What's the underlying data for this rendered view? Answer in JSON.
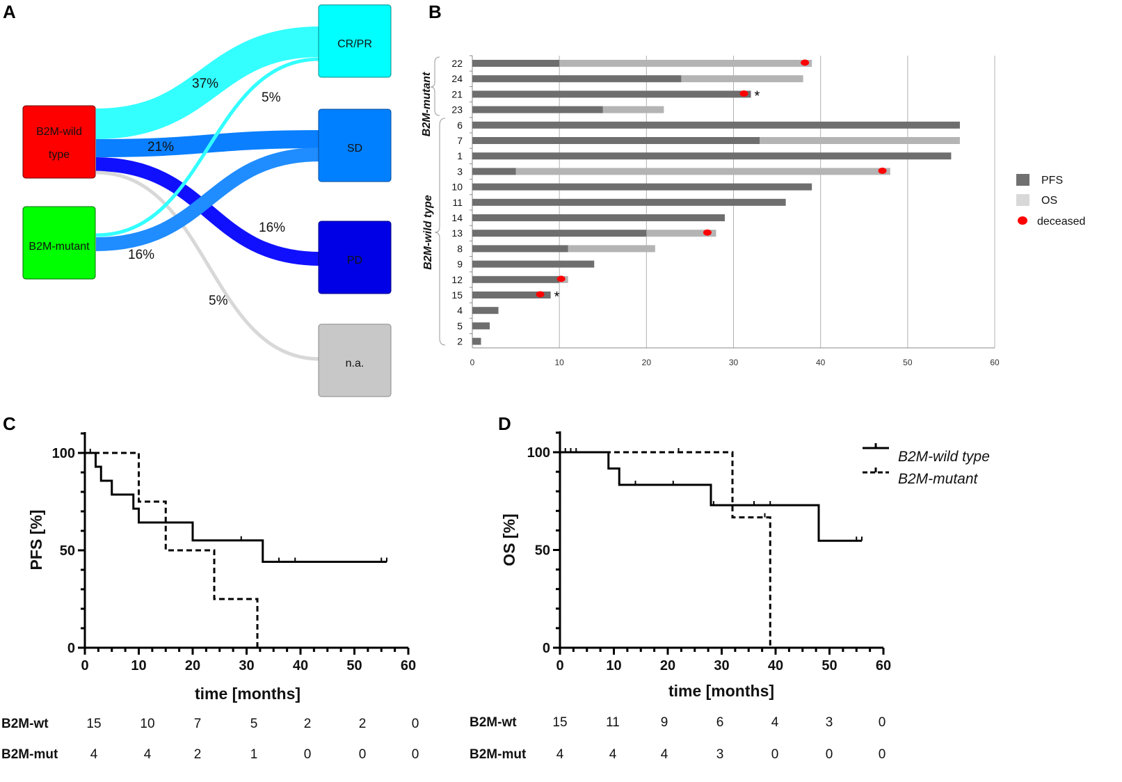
{
  "panel_labels": {
    "a": "A",
    "b": "B",
    "c": "C",
    "d": "D"
  },
  "sankey": {
    "sources": [
      {
        "id": "wt",
        "line1": "B2M-wild",
        "line2": "type",
        "color": "#ff0000"
      },
      {
        "id": "mut",
        "line1": "B2M-mutant",
        "line2": "",
        "color": "#00ff00"
      }
    ],
    "targets": [
      {
        "id": "crpr",
        "label": "CR/PR",
        "color": "#00ffff"
      },
      {
        "id": "sd",
        "label": "SD",
        "color": "#0080ff"
      },
      {
        "id": "pd",
        "label": "PD",
        "color": "#0000e6"
      },
      {
        "id": "na",
        "label": "n.a.",
        "color": "#c8c8c8"
      }
    ],
    "flows": [
      {
        "from": "wt",
        "to": "crpr",
        "value": 37,
        "label": "37%",
        "color": "#33ffff"
      },
      {
        "from": "wt",
        "to": "sd",
        "value": 21,
        "label": "21%",
        "color": "#0a7fff"
      },
      {
        "from": "wt",
        "to": "pd",
        "value": 16,
        "label": "16%",
        "color": "#1010ff"
      },
      {
        "from": "wt",
        "to": "na",
        "value": 5,
        "label": "5%",
        "color": "#d8d8d8"
      },
      {
        "from": "mut",
        "to": "crpr",
        "value": 5,
        "label": "5%",
        "color": "#33ffff"
      },
      {
        "from": "mut",
        "to": "sd",
        "value": 16,
        "label": "16%",
        "color": "#1f8cff"
      }
    ]
  },
  "chart_data": [
    {
      "type": "bar",
      "id": "swimmer",
      "subtype": "swimmer-plot",
      "x_ticks": [
        0,
        10,
        20,
        30,
        40,
        50,
        60
      ],
      "xlim": [
        0,
        60
      ],
      "groups": [
        {
          "label": "B2M-mutant",
          "ids": [
            "22",
            "24",
            "21",
            "23"
          ]
        },
        {
          "label": "B2M-wild type",
          "ids": [
            "6",
            "7",
            "1",
            "3",
            "10",
            "11",
            "14",
            "13",
            "8",
            "9",
            "12",
            "15",
            "4",
            "5",
            "2"
          ]
        }
      ],
      "patients": [
        {
          "id": "22",
          "pfs": 10,
          "os": 39,
          "deceased": 38.2,
          "star": false
        },
        {
          "id": "24",
          "pfs": 24,
          "os": 38,
          "deceased": null,
          "star": false
        },
        {
          "id": "21",
          "pfs": 32,
          "os": 32,
          "deceased": 31.2,
          "star": true
        },
        {
          "id": "23",
          "pfs": 15,
          "os": 22,
          "deceased": null,
          "star": false
        },
        {
          "id": "6",
          "pfs": 56,
          "os": 56,
          "deceased": null,
          "star": false
        },
        {
          "id": "7",
          "pfs": 33,
          "os": 56,
          "deceased": null,
          "star": false
        },
        {
          "id": "1",
          "pfs": 55,
          "os": 55,
          "deceased": null,
          "star": false
        },
        {
          "id": "3",
          "pfs": 5,
          "os": 48,
          "deceased": 47.1,
          "star": false
        },
        {
          "id": "10",
          "pfs": 39,
          "os": 39,
          "deceased": null,
          "star": false
        },
        {
          "id": "11",
          "pfs": 36,
          "os": 36,
          "deceased": null,
          "star": false
        },
        {
          "id": "14",
          "pfs": 29,
          "os": 29,
          "deceased": null,
          "star": false
        },
        {
          "id": "13",
          "pfs": 20,
          "os": 28,
          "deceased": 27,
          "star": false
        },
        {
          "id": "8",
          "pfs": 11,
          "os": 21,
          "deceased": null,
          "star": false
        },
        {
          "id": "9",
          "pfs": 14,
          "os": 14,
          "deceased": null,
          "star": false
        },
        {
          "id": "12",
          "pfs": 10,
          "os": 11,
          "deceased": 10.2,
          "star": false
        },
        {
          "id": "15",
          "pfs": 9,
          "os": 9,
          "deceased": 7.8,
          "star": true
        },
        {
          "id": "4",
          "pfs": 3,
          "os": 3,
          "deceased": null,
          "star": false
        },
        {
          "id": "5",
          "pfs": 2,
          "os": 2,
          "deceased": null,
          "star": false
        },
        {
          "id": "2",
          "pfs": 1,
          "os": 1,
          "deceased": null,
          "star": false
        }
      ],
      "star_symbol": "*",
      "legend": [
        {
          "label": "PFS",
          "color": "#707070"
        },
        {
          "label": "OS",
          "color": "#d8d8d8"
        },
        {
          "label": "deceased",
          "color": "#ff0000"
        }
      ],
      "colors": {
        "pfs": "#6e6e6e",
        "os": "#b4b4b4",
        "deceased": "#ff0000"
      }
    },
    {
      "type": "line",
      "id": "km_pfs",
      "subtype": "kaplan-meier",
      "ylabel": "PFS [%]",
      "xlabel": "time [months]",
      "xlim": [
        0,
        60
      ],
      "ylim": [
        0,
        100
      ],
      "x_ticks": [
        0,
        10,
        20,
        30,
        40,
        50,
        60
      ],
      "y_ticks": [
        0,
        50,
        100
      ],
      "series": [
        {
          "name": "B2M-wild type",
          "style": "solid",
          "steps": [
            [
              0,
              100
            ],
            [
              2,
              92.9
            ],
            [
              3,
              85.7
            ],
            [
              5,
              78.6
            ],
            [
              9,
              71.4
            ],
            [
              10,
              64.3
            ],
            [
              20,
              55.1
            ],
            [
              33,
              44.1
            ],
            [
              56,
              44.1
            ]
          ],
          "censored": [
            [
              1,
              100
            ],
            [
              15,
              64.3
            ],
            [
              29,
              55.1
            ],
            [
              36,
              44.1
            ],
            [
              39,
              44.1
            ],
            [
              55,
              44.1
            ],
            [
              56,
              44.1
            ]
          ]
        },
        {
          "name": "B2M-mutant",
          "style": "dashed",
          "steps": [
            [
              0,
              100
            ],
            [
              10,
              75
            ],
            [
              15,
              50
            ],
            [
              24,
              25
            ],
            [
              32,
              0
            ]
          ],
          "censored": [
            [
              10,
              75
            ]
          ]
        }
      ],
      "risk_table": {
        "times": [
          0,
          10,
          20,
          30,
          40,
          50,
          60
        ],
        "rows": [
          {
            "label": "B2M-wt",
            "values": [
              "15",
              "10",
              "7",
              "5",
              "2",
              "2",
              "0"
            ]
          },
          {
            "label": "B2M-mut",
            "values": [
              "4",
              "4",
              "2",
              "1",
              "0",
              "0",
              "0"
            ]
          }
        ]
      }
    },
    {
      "type": "line",
      "id": "km_os",
      "subtype": "kaplan-meier",
      "ylabel": "OS [%]",
      "xlabel": "time [months]",
      "xlim": [
        0,
        60
      ],
      "ylim": [
        0,
        100
      ],
      "x_ticks": [
        0,
        10,
        20,
        30,
        40,
        50,
        60
      ],
      "y_ticks": [
        0,
        50,
        100
      ],
      "legend": [
        {
          "label": "B2M-wild type",
          "style": "solid"
        },
        {
          "label": "B2M-mutant",
          "style": "dashed"
        }
      ],
      "series": [
        {
          "name": "B2M-wild type",
          "style": "solid",
          "steps": [
            [
              0,
              100
            ],
            [
              9,
              91.7
            ],
            [
              11,
              83.3
            ],
            [
              28,
              72.9
            ],
            [
              48,
              54.7
            ],
            [
              56,
              54.7
            ]
          ],
          "censored": [
            [
              1,
              100
            ],
            [
              2,
              100
            ],
            [
              3,
              100
            ],
            [
              14,
              83.3
            ],
            [
              21,
              83.3
            ],
            [
              28.5,
              72.9
            ],
            [
              36,
              72.9
            ],
            [
              39,
              72.9
            ],
            [
              55,
              54.7
            ],
            [
              56,
              54.7
            ]
          ]
        },
        {
          "name": "B2M-mutant",
          "style": "dashed",
          "steps": [
            [
              0,
              100
            ],
            [
              32,
              66.7
            ],
            [
              39,
              0
            ]
          ],
          "censored": [
            [
              22,
              100
            ],
            [
              38,
              66.7
            ]
          ]
        }
      ],
      "risk_table": {
        "times": [
          0,
          10,
          20,
          30,
          40,
          50,
          60
        ],
        "rows": [
          {
            "label": "B2M-wt",
            "values": [
              "15",
              "11",
              "9",
              "6",
              "4",
              "3",
              "0"
            ]
          },
          {
            "label": "B2M-mut",
            "values": [
              "4",
              "4",
              "4",
              "3",
              "0",
              "0",
              "0"
            ]
          }
        ]
      }
    }
  ]
}
